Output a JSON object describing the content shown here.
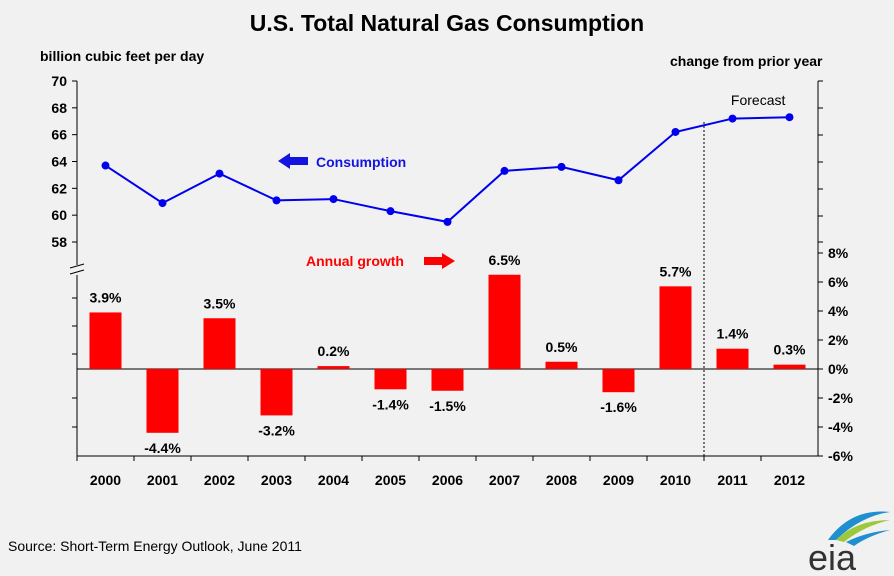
{
  "title": "U.S. Total Natural Gas Consumption",
  "left_axis_title": "billion cubic feet per day",
  "right_axis_title": "change from prior year",
  "source": "Source: Short-Term Energy Outlook, June 2011",
  "logo_text": "eia",
  "chart_data": {
    "type": "line",
    "categories": [
      "2000",
      "2001",
      "2002",
      "2003",
      "2004",
      "2005",
      "2006",
      "2007",
      "2008",
      "2009",
      "2010",
      "2011",
      "2012"
    ],
    "series": [
      {
        "name": "Consumption",
        "type": "line",
        "axis": "left",
        "color": "#0000ee",
        "values": [
          63.7,
          60.9,
          63.1,
          61.1,
          61.2,
          60.3,
          59.5,
          63.3,
          63.6,
          62.6,
          66.2,
          67.2,
          67.3
        ]
      },
      {
        "name": "Annual growth",
        "type": "bar",
        "axis": "right",
        "color": "#ff0000",
        "values": [
          3.9,
          -4.4,
          3.5,
          -3.2,
          0.2,
          -1.4,
          -1.5,
          6.5,
          0.5,
          -1.6,
          5.7,
          1.4,
          0.3
        ],
        "labels": [
          "3.9%",
          "-4.4%",
          "3.5%",
          "-3.2%",
          "0.2%",
          "-1.4%",
          "-1.5%",
          "6.5%",
          "0.5%",
          "-1.6%",
          "5.7%",
          "1.4%",
          "0.3%"
        ]
      }
    ],
    "left_axis": {
      "ticks": [
        58,
        60,
        62,
        64,
        66,
        68,
        70
      ],
      "range": [
        58,
        70
      ]
    },
    "right_axis": {
      "ticks": [
        -6,
        -4,
        -2,
        0,
        2,
        4,
        6,
        8
      ],
      "tick_labels": [
        "-6%",
        "-4%",
        "-2%",
        "0%",
        "2%",
        "4%",
        "6%",
        "8%"
      ],
      "range": [
        -6,
        8
      ]
    },
    "annotations": {
      "consumption_label": "Consumption",
      "growth_label": "Annual growth",
      "forecast_label": "Forecast"
    },
    "forecast_start": "2011",
    "grid": false,
    "legend": "none"
  }
}
